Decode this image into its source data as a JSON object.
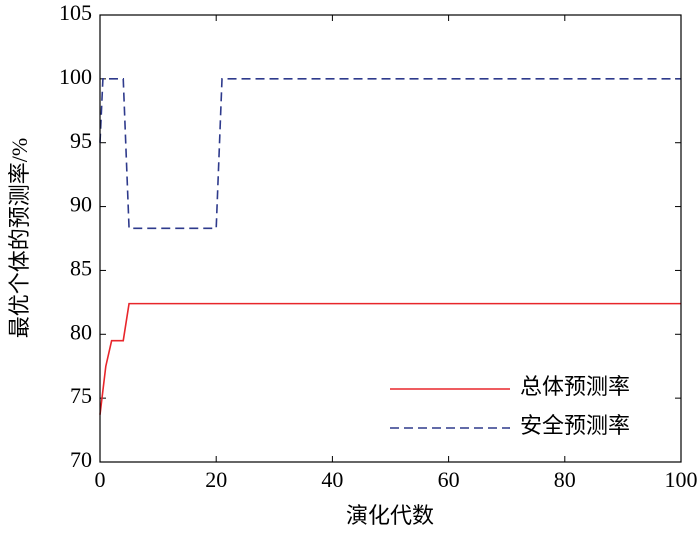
{
  "chart_data": {
    "type": "line",
    "x_label": "演化代数",
    "y_label": "最优个体的预测率/%",
    "xlim": [
      0,
      100
    ],
    "xticks": [
      0,
      20,
      40,
      60,
      80,
      100
    ],
    "ylim": [
      70,
      105
    ],
    "yticks": [
      70,
      75,
      80,
      85,
      90,
      95,
      100,
      105
    ],
    "legend": "lower right",
    "series": [
      {
        "name": "总体预测率",
        "color": "#e8262b",
        "dash": "solid",
        "x": [
          0,
          1,
          2,
          4,
          5,
          100
        ],
        "values": [
          73.7,
          77.5,
          79.5,
          79.5,
          82.4,
          82.4
        ]
      },
      {
        "name": "安全预测率",
        "color": "#2e3a8c",
        "dash": "dashed",
        "x": [
          0,
          0.5,
          4,
          5,
          20,
          21,
          100
        ],
        "values": [
          95,
          100,
          100,
          88.3,
          88.3,
          100,
          100
        ]
      }
    ]
  }
}
